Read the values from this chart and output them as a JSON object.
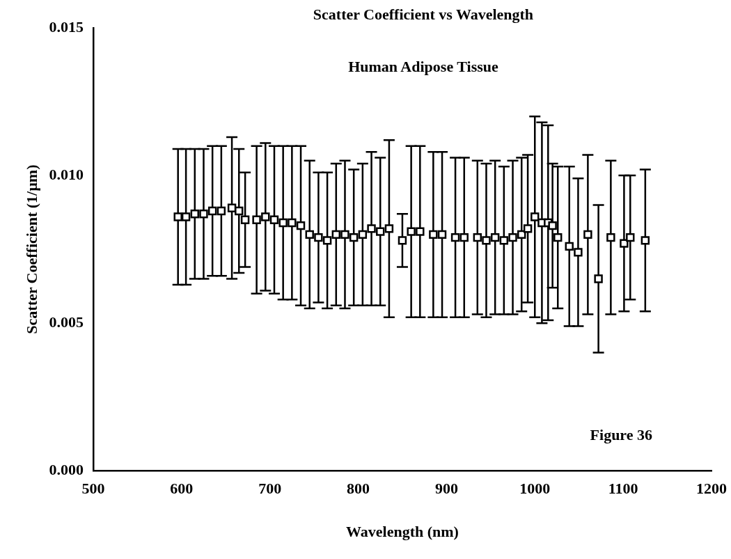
{
  "chart_data": {
    "type": "scatter",
    "title": "Scatter Coefficient vs Wavelength",
    "subtitle": "Human Adipose Tissue",
    "xlabel": "Wavelength (nm)",
    "ylabel": "Scatter Coefficient (1/µm)",
    "annotations": [
      "Figure 36"
    ],
    "x": [
      596,
      605,
      615,
      625,
      635,
      645,
      657,
      665,
      672,
      685,
      695,
      705,
      715,
      725,
      735,
      745,
      755,
      765,
      775,
      785,
      795,
      805,
      815,
      825,
      835,
      850,
      860,
      870,
      885,
      895,
      910,
      920,
      935,
      945,
      955,
      965,
      975,
      985,
      992,
      1000,
      1008,
      1015,
      1020,
      1026,
      1039,
      1049,
      1060,
      1072,
      1086,
      1101,
      1108,
      1125
    ],
    "values": [
      0.0086,
      0.0086,
      0.0087,
      0.0087,
      0.0088,
      0.0088,
      0.0089,
      0.0088,
      0.0085,
      0.0085,
      0.0086,
      0.0085,
      0.0084,
      0.0084,
      0.0083,
      0.008,
      0.0079,
      0.0078,
      0.008,
      0.008,
      0.0079,
      0.008,
      0.0082,
      0.0081,
      0.0082,
      0.0078,
      0.0081,
      0.0081,
      0.008,
      0.008,
      0.0079,
      0.0079,
      0.0079,
      0.0078,
      0.0079,
      0.0078,
      0.0079,
      0.008,
      0.0082,
      0.0086,
      0.0084,
      0.0084,
      0.0083,
      0.0079,
      0.0076,
      0.0074,
      0.008,
      0.0065,
      0.0079,
      0.0077,
      0.0079,
      0.0078
    ],
    "errors": [
      0.0023,
      0.0023,
      0.0022,
      0.0022,
      0.0022,
      0.0022,
      0.0024,
      0.0021,
      0.0016,
      0.0025,
      0.0025,
      0.0025,
      0.0026,
      0.0026,
      0.0027,
      0.0025,
      0.0022,
      0.0023,
      0.0024,
      0.0025,
      0.0023,
      0.0024,
      0.0026,
      0.0025,
      0.003,
      0.0009,
      0.0029,
      0.0029,
      0.0028,
      0.0028,
      0.0027,
      0.0027,
      0.0026,
      0.0026,
      0.0026,
      0.0025,
      0.0026,
      0.0026,
      0.0025,
      0.0034,
      0.0034,
      0.0033,
      0.0021,
      0.0024,
      0.0027,
      0.0025,
      0.0027,
      0.0025,
      0.0026,
      0.0023,
      0.0021,
      0.0024
    ],
    "color": "#000000",
    "marker": "square",
    "xlim": [
      500,
      1200
    ],
    "xticks": [
      500,
      600,
      700,
      800,
      900,
      1000,
      1100,
      1200
    ],
    "ylim": [
      0,
      0.015
    ],
    "yticks": [
      {
        "value": 0,
        "label": "0.000"
      },
      {
        "value": 0.005,
        "label": "0.005"
      },
      {
        "value": 0.01,
        "label": "0.010"
      },
      {
        "value": 0.015,
        "label": "0.015"
      }
    ],
    "grid": false,
    "legend": false
  }
}
